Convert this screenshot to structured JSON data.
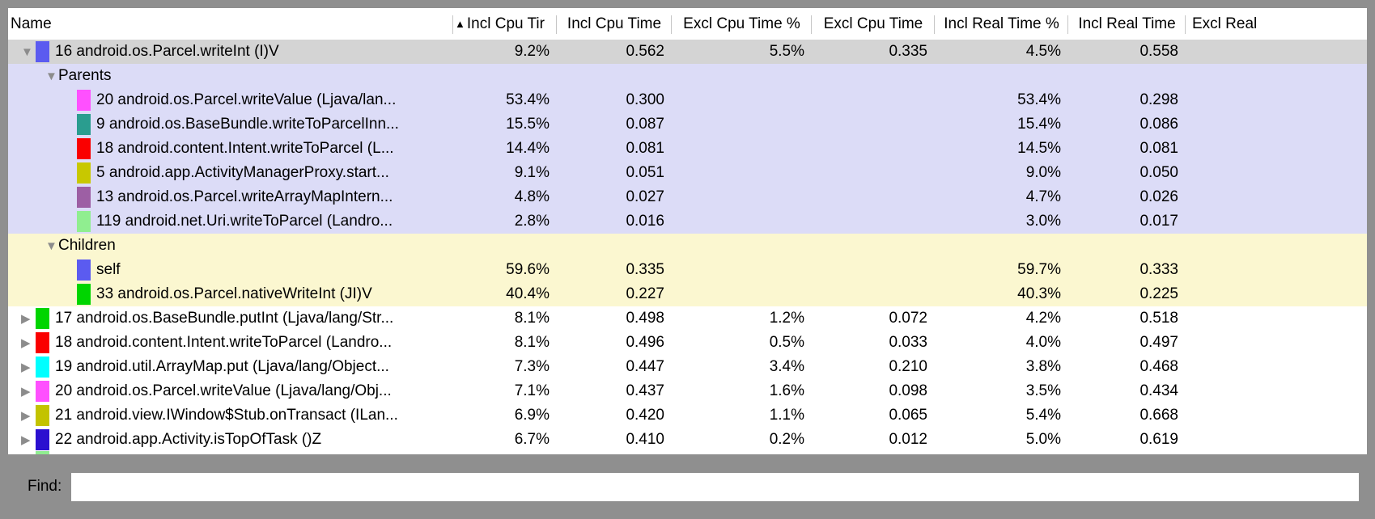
{
  "window": {
    "frame_color": "#8f8f8f",
    "find_label": "Find:",
    "find_value": ""
  },
  "table": {
    "columns": [
      {
        "label": "Name"
      },
      {
        "label": "Incl Cpu Tir",
        "sort": "asc"
      },
      {
        "label": "Incl Cpu Time"
      },
      {
        "label": "Excl Cpu Time %"
      },
      {
        "label": "Excl Cpu Time"
      },
      {
        "label": "Incl Real Time %"
      },
      {
        "label": "Incl Real Time"
      },
      {
        "label": "Excl Real"
      }
    ],
    "section_colors": {
      "selected_row": "#d4d4d4",
      "parents_section": "#dcdcf7",
      "children_section": "#fbf7d0"
    },
    "rows": [
      {
        "kind": "lv0",
        "arrow": "down",
        "chip": "#5b5bf0",
        "name": "16 android.os.Parcel.writeInt (I)V",
        "bg": "selected",
        "values": [
          "9.2%",
          "0.562",
          "5.5%",
          "0.335",
          "4.5%",
          "0.558",
          ""
        ]
      },
      {
        "kind": "sec",
        "arrow": "down",
        "name": "Parents",
        "bg": "parents",
        "values": [
          "",
          "",
          "",
          "",
          "",
          "",
          ""
        ]
      },
      {
        "kind": "child",
        "chip": "#ff50ff",
        "name": "20 android.os.Parcel.writeValue (Ljava/lan...",
        "bg": "parents",
        "values": [
          "53.4%",
          "0.300",
          "",
          "",
          "53.4%",
          "0.298",
          ""
        ]
      },
      {
        "kind": "child",
        "chip": "#2a9d8f",
        "name": "9 android.os.BaseBundle.writeToParcelInn...",
        "bg": "parents",
        "values": [
          "15.5%",
          "0.087",
          "",
          "",
          "15.4%",
          "0.086",
          ""
        ]
      },
      {
        "kind": "child",
        "chip": "#fa0000",
        "name": "18 android.content.Intent.writeToParcel (L...",
        "bg": "parents",
        "values": [
          "14.4%",
          "0.081",
          "",
          "",
          "14.5%",
          "0.081",
          ""
        ]
      },
      {
        "kind": "child",
        "chip": "#c8c800",
        "name": "5 android.app.ActivityManagerProxy.start...",
        "bg": "parents",
        "values": [
          "9.1%",
          "0.051",
          "",
          "",
          "9.0%",
          "0.050",
          ""
        ]
      },
      {
        "kind": "child",
        "chip": "#9d5fa4",
        "name": "13 android.os.Parcel.writeArrayMapIntern...",
        "bg": "parents",
        "values": [
          "4.8%",
          "0.027",
          "",
          "",
          "4.7%",
          "0.026",
          ""
        ]
      },
      {
        "kind": "child",
        "chip": "#90ee90",
        "name": "119 android.net.Uri.writeToParcel (Landro...",
        "bg": "parents",
        "values": [
          "2.8%",
          "0.016",
          "",
          "",
          "3.0%",
          "0.017",
          ""
        ]
      },
      {
        "kind": "sec",
        "arrow": "down",
        "name": "Children",
        "bg": "children",
        "values": [
          "",
          "",
          "",
          "",
          "",
          "",
          ""
        ]
      },
      {
        "kind": "child",
        "chip": "#5b5bf0",
        "name": "self",
        "bg": "children",
        "values": [
          "59.6%",
          "0.335",
          "",
          "",
          "59.7%",
          "0.333",
          ""
        ]
      },
      {
        "kind": "child",
        "chip": "#00d500",
        "name": "33 android.os.Parcel.nativeWriteInt (JI)V",
        "bg": "children",
        "values": [
          "40.4%",
          "0.227",
          "",
          "",
          "40.3%",
          "0.225",
          ""
        ]
      },
      {
        "kind": "lv0",
        "arrow": "right",
        "chip": "#00d500",
        "name": "17 android.os.BaseBundle.putInt (Ljava/lang/Str...",
        "bg": "white",
        "values": [
          "8.1%",
          "0.498",
          "1.2%",
          "0.072",
          "4.2%",
          "0.518",
          ""
        ]
      },
      {
        "kind": "lv0",
        "arrow": "right",
        "chip": "#fa0000",
        "name": "18 android.content.Intent.writeToParcel (Landro...",
        "bg": "white",
        "values": [
          "8.1%",
          "0.496",
          "0.5%",
          "0.033",
          "4.0%",
          "0.497",
          ""
        ]
      },
      {
        "kind": "lv0",
        "arrow": "right",
        "chip": "#00ffff",
        "name": "19 android.util.ArrayMap.put (Ljava/lang/Object...",
        "bg": "white",
        "values": [
          "7.3%",
          "0.447",
          "3.4%",
          "0.210",
          "3.8%",
          "0.468",
          ""
        ]
      },
      {
        "kind": "lv0",
        "arrow": "right",
        "chip": "#ff50ff",
        "name": "20 android.os.Parcel.writeValue (Ljava/lang/Obj...",
        "bg": "white",
        "values": [
          "7.1%",
          "0.437",
          "1.6%",
          "0.098",
          "3.5%",
          "0.434",
          ""
        ]
      },
      {
        "kind": "lv0",
        "arrow": "right",
        "chip": "#c3c300",
        "name": "21 android.view.IWindow$Stub.onTransact (ILan...",
        "bg": "white",
        "values": [
          "6.9%",
          "0.420",
          "1.1%",
          "0.065",
          "5.4%",
          "0.668",
          ""
        ]
      },
      {
        "kind": "lv0",
        "arrow": "right",
        "chip": "#2b10d0",
        "name": "22 android.app.Activity.isTopOfTask ()Z",
        "bg": "white",
        "values": [
          "6.7%",
          "0.410",
          "0.2%",
          "0.012",
          "5.0%",
          "0.619",
          ""
        ]
      }
    ],
    "partial_next_row_chip": "#90ee90"
  }
}
